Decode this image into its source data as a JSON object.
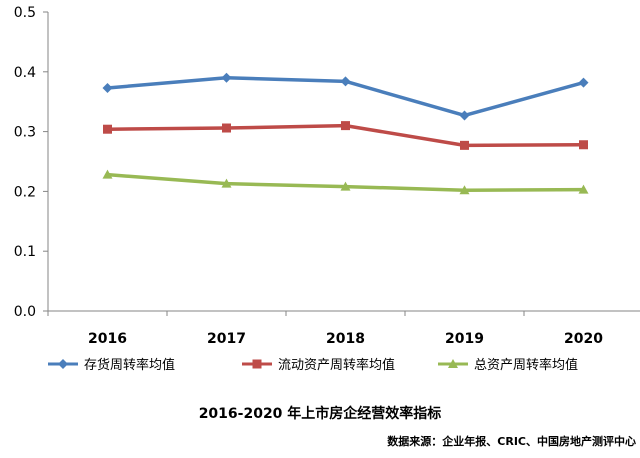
{
  "chart_data": {
    "type": "line",
    "title": "2016-2020 年上市房企经营效率指标",
    "source": "数据来源：企业年报、CRIC、中国房地产测评中心",
    "categories": [
      "2016",
      "2017",
      "2018",
      "2019",
      "2020"
    ],
    "ylim": [
      0,
      0.5
    ],
    "yticks": [
      "0.0",
      "0.1",
      "0.2",
      "0.3",
      "0.4",
      "0.5"
    ],
    "xlabel": "",
    "ylabel": "",
    "grid": false,
    "legend_position": "bottom",
    "series": [
      {
        "name": "存货周转率均值",
        "values": [
          0.373,
          0.39,
          0.384,
          0.327,
          0.382
        ],
        "color": "#4a7ebb",
        "marker": "diamond"
      },
      {
        "name": "流动资产周转率均值",
        "values": [
          0.304,
          0.306,
          0.31,
          0.277,
          0.278
        ],
        "color": "#be4b48",
        "marker": "square"
      },
      {
        "name": "总资产周转率均值",
        "values": [
          0.228,
          0.213,
          0.208,
          0.202,
          0.203
        ],
        "color": "#98b954",
        "marker": "triangle"
      }
    ]
  }
}
